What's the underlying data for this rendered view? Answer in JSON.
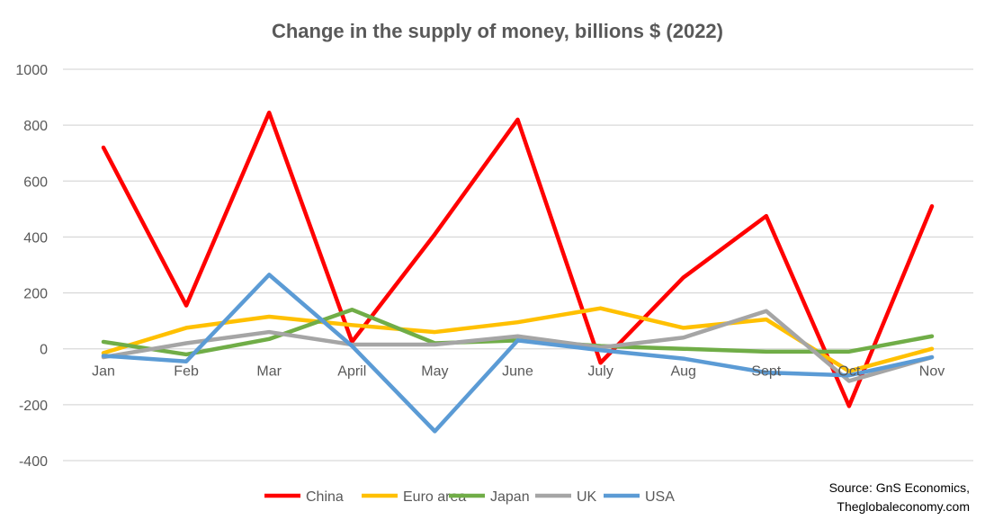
{
  "chart_data": {
    "type": "line",
    "title": "Change in the supply of money,  billions $ (2022)",
    "xlabel": "",
    "ylabel": "",
    "ylim": [
      -400,
      1000
    ],
    "yticks": [
      1000,
      800,
      600,
      400,
      200,
      0,
      -200,
      -400
    ],
    "grid": true,
    "legend_position": "bottom",
    "categories": [
      "Jan",
      "Feb",
      "Mar",
      "April",
      "May",
      "June",
      "July",
      "Aug",
      "Sept",
      "Oct",
      "Nov"
    ],
    "series": [
      {
        "name": "China",
        "color": "#ff0000",
        "values": [
          720,
          155,
          845,
          25,
          410,
          820,
          -50,
          255,
          475,
          -205,
          510
        ]
      },
      {
        "name": "Euro area",
        "color": "#ffc000",
        "values": [
          -15,
          75,
          115,
          85,
          60,
          95,
          145,
          75,
          105,
          -80,
          0
        ]
      },
      {
        "name": "Japan",
        "color": "#70ad47",
        "values": [
          25,
          -20,
          35,
          140,
          20,
          30,
          10,
          0,
          -10,
          -10,
          45
        ]
      },
      {
        "name": "UK",
        "color": "#a5a5a5",
        "values": [
          -30,
          20,
          60,
          15,
          15,
          45,
          5,
          40,
          135,
          -115,
          -30
        ]
      },
      {
        "name": "USA",
        "color": "#5b9bd5",
        "values": [
          -25,
          -45,
          265,
          10,
          -295,
          30,
          -5,
          -35,
          -85,
          -95,
          -30
        ]
      }
    ],
    "source": [
      "Source: GnS Economics,",
      "Theglobaleconomy.com"
    ]
  }
}
